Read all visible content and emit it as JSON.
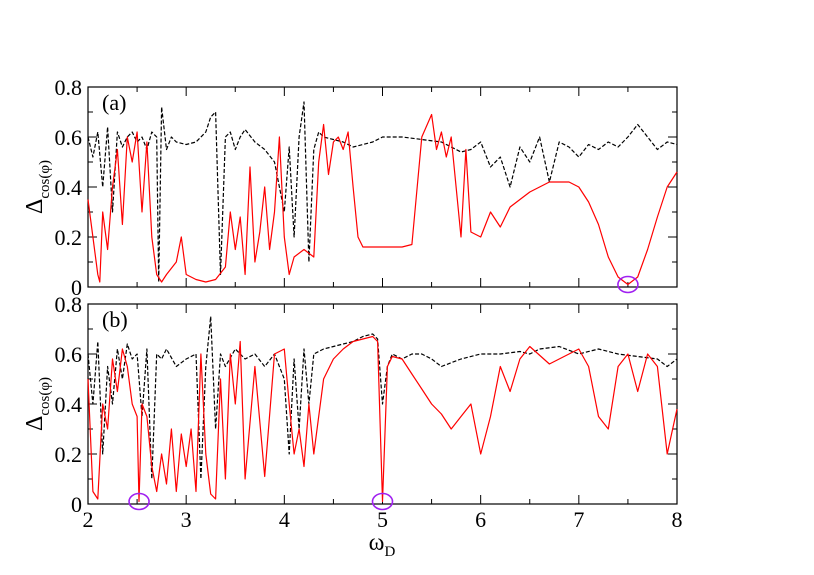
{
  "chart_data": {
    "type": "line",
    "x_axis": {
      "label_main": "ω",
      "label_sub": "D",
      "range": [
        2,
        8
      ],
      "ticks": [
        2,
        3,
        4,
        5,
        6,
        7,
        8
      ],
      "tick_labels": [
        "2",
        "3",
        "4",
        "5",
        "6",
        "7",
        "8"
      ]
    },
    "panels": [
      {
        "id": "a",
        "label": "(a)",
        "ylabel_main": "Δ",
        "ylabel_sub": "cos(φ)",
        "ylim": [
          0,
          0.8
        ],
        "yticks": [
          0,
          0.2,
          0.4,
          0.6,
          0.8
        ],
        "ytick_labels": [
          "0",
          "0.2",
          "0.4",
          "0.6",
          "0.8"
        ],
        "series": [
          {
            "name": "dashed",
            "color": "#000000",
            "style": "dashed",
            "x": [
              2.0,
              2.05,
              2.1,
              2.15,
              2.2,
              2.25,
              2.3,
              2.35,
              2.4,
              2.45,
              2.5,
              2.55,
              2.6,
              2.65,
              2.7,
              2.72,
              2.75,
              2.8,
              2.85,
              2.9,
              3.0,
              3.1,
              3.2,
              3.25,
              3.3,
              3.35,
              3.4,
              3.45,
              3.5,
              3.55,
              3.6,
              3.7,
              3.8,
              3.9,
              4.0,
              4.05,
              4.1,
              4.15,
              4.2,
              4.25,
              4.3,
              4.35,
              4.4,
              4.5,
              4.6,
              4.7,
              4.8,
              4.9,
              5.0,
              5.2,
              5.4,
              5.6,
              5.7,
              5.8,
              5.9,
              6.0,
              6.1,
              6.2,
              6.3,
              6.4,
              6.5,
              6.6,
              6.7,
              6.8,
              6.9,
              7.0,
              7.1,
              7.2,
              7.3,
              7.4,
              7.5,
              7.6,
              7.7,
              7.8,
              7.9,
              8.0
            ],
            "y": [
              0.6,
              0.52,
              0.62,
              0.4,
              0.64,
              0.3,
              0.62,
              0.56,
              0.6,
              0.62,
              0.58,
              0.6,
              0.55,
              0.62,
              0.6,
              0.02,
              0.72,
              0.55,
              0.6,
              0.58,
              0.57,
              0.58,
              0.62,
              0.68,
              0.7,
              0.05,
              0.6,
              0.62,
              0.55,
              0.6,
              0.63,
              0.58,
              0.55,
              0.5,
              0.3,
              0.56,
              0.2,
              0.6,
              0.74,
              0.1,
              0.55,
              0.62,
              0.6,
              0.59,
              0.58,
              0.56,
              0.57,
              0.58,
              0.6,
              0.6,
              0.59,
              0.58,
              0.56,
              0.54,
              0.55,
              0.58,
              0.48,
              0.52,
              0.4,
              0.56,
              0.5,
              0.6,
              0.42,
              0.58,
              0.56,
              0.52,
              0.57,
              0.55,
              0.58,
              0.56,
              0.6,
              0.65,
              0.6,
              0.55,
              0.58,
              0.57
            ]
          },
          {
            "name": "solid",
            "color": "#ff0000",
            "style": "solid",
            "x": [
              2.0,
              2.05,
              2.1,
              2.12,
              2.15,
              2.2,
              2.25,
              2.3,
              2.35,
              2.4,
              2.45,
              2.5,
              2.55,
              2.6,
              2.65,
              2.7,
              2.75,
              2.8,
              2.9,
              2.95,
              3.0,
              3.1,
              3.2,
              3.3,
              3.4,
              3.45,
              3.5,
              3.55,
              3.6,
              3.65,
              3.7,
              3.75,
              3.8,
              3.85,
              3.9,
              3.95,
              4.0,
              4.05,
              4.1,
              4.2,
              4.3,
              4.35,
              4.4,
              4.45,
              4.5,
              4.55,
              4.6,
              4.65,
              4.7,
              4.75,
              4.8,
              4.9,
              5.0,
              5.2,
              5.3,
              5.4,
              5.5,
              5.55,
              5.6,
              5.65,
              5.7,
              5.8,
              5.85,
              5.9,
              6.0,
              6.1,
              6.2,
              6.3,
              6.5,
              6.7,
              6.9,
              7.0,
              7.1,
              7.2,
              7.3,
              7.4,
              7.5,
              7.6,
              7.7,
              7.8,
              7.9,
              8.0
            ],
            "y": [
              0.35,
              0.2,
              0.05,
              0.02,
              0.3,
              0.15,
              0.4,
              0.55,
              0.25,
              0.6,
              0.5,
              0.62,
              0.3,
              0.58,
              0.2,
              0.05,
              0.02,
              0.05,
              0.1,
              0.2,
              0.05,
              0.03,
              0.02,
              0.03,
              0.08,
              0.3,
              0.15,
              0.28,
              0.05,
              0.48,
              0.1,
              0.22,
              0.4,
              0.15,
              0.3,
              0.6,
              0.2,
              0.05,
              0.12,
              0.15,
              0.12,
              0.5,
              0.65,
              0.45,
              0.58,
              0.6,
              0.55,
              0.62,
              0.4,
              0.2,
              0.16,
              0.16,
              0.16,
              0.16,
              0.17,
              0.6,
              0.69,
              0.55,
              0.62,
              0.52,
              0.6,
              0.2,
              0.55,
              0.22,
              0.2,
              0.3,
              0.24,
              0.32,
              0.38,
              0.42,
              0.42,
              0.4,
              0.34,
              0.25,
              0.12,
              0.04,
              0.01,
              0.04,
              0.15,
              0.28,
              0.4,
              0.46
            ]
          }
        ],
        "markers": [
          {
            "x": 7.5,
            "y": 0.01,
            "color": "#a020f0"
          }
        ]
      },
      {
        "id": "b",
        "label": "(b)",
        "ylabel_main": "Δ",
        "ylabel_sub": "cos(φ)",
        "ylim": [
          0,
          0.8
        ],
        "yticks": [
          0,
          0.2,
          0.4,
          0.6,
          0.8
        ],
        "ytick_labels": [
          "0",
          "0.2",
          "0.4",
          "0.6",
          "0.8"
        ],
        "series": [
          {
            "name": "dashed",
            "color": "#000000",
            "style": "dashed",
            "x": [
              2.0,
              2.05,
              2.1,
              2.15,
              2.2,
              2.25,
              2.3,
              2.35,
              2.4,
              2.45,
              2.5,
              2.55,
              2.6,
              2.65,
              2.7,
              2.75,
              2.8,
              2.9,
              3.0,
              3.1,
              3.15,
              3.2,
              3.25,
              3.3,
              3.35,
              3.4,
              3.5,
              3.6,
              3.7,
              3.8,
              3.9,
              4.0,
              4.05,
              4.1,
              4.15,
              4.2,
              4.25,
              4.3,
              4.4,
              4.5,
              4.6,
              4.7,
              4.8,
              4.9,
              4.95,
              5.0,
              5.05,
              5.1,
              5.2,
              5.3,
              5.4,
              5.5,
              5.6,
              5.8,
              6.0,
              6.2,
              6.4,
              6.5,
              6.6,
              6.8,
              7.0,
              7.2,
              7.4,
              7.6,
              7.8,
              7.9,
              8.0
            ],
            "y": [
              0.6,
              0.4,
              0.65,
              0.2,
              0.55,
              0.4,
              0.62,
              0.5,
              0.64,
              0.58,
              0.6,
              0.35,
              0.62,
              0.1,
              0.6,
              0.58,
              0.62,
              0.55,
              0.58,
              0.6,
              0.1,
              0.55,
              0.75,
              0.3,
              0.6,
              0.55,
              0.62,
              0.58,
              0.6,
              0.55,
              0.6,
              0.5,
              0.2,
              0.58,
              0.3,
              0.62,
              0.4,
              0.6,
              0.62,
              0.63,
              0.64,
              0.65,
              0.67,
              0.68,
              0.66,
              0.4,
              0.55,
              0.6,
              0.58,
              0.6,
              0.6,
              0.58,
              0.55,
              0.58,
              0.6,
              0.6,
              0.61,
              0.6,
              0.62,
              0.63,
              0.6,
              0.62,
              0.6,
              0.59,
              0.58,
              0.55,
              0.58
            ]
          },
          {
            "name": "solid",
            "color": "#ff0000",
            "style": "solid",
            "x": [
              2.0,
              2.05,
              2.1,
              2.15,
              2.2,
              2.25,
              2.3,
              2.35,
              2.4,
              2.45,
              2.5,
              2.52,
              2.55,
              2.6,
              2.65,
              2.7,
              2.75,
              2.8,
              2.85,
              2.9,
              2.95,
              3.0,
              3.05,
              3.1,
              3.15,
              3.2,
              3.25,
              3.3,
              3.35,
              3.4,
              3.45,
              3.5,
              3.55,
              3.6,
              3.7,
              3.8,
              3.9,
              4.0,
              4.05,
              4.1,
              4.15,
              4.2,
              4.25,
              4.3,
              4.4,
              4.5,
              4.6,
              4.7,
              4.8,
              4.9,
              4.95,
              5.0,
              5.05,
              5.1,
              5.2,
              5.3,
              5.4,
              5.5,
              5.6,
              5.7,
              5.8,
              5.9,
              6.0,
              6.1,
              6.2,
              6.3,
              6.4,
              6.5,
              6.7,
              6.9,
              7.0,
              7.1,
              7.2,
              7.3,
              7.4,
              7.5,
              7.6,
              7.7,
              7.8,
              7.9,
              8.0
            ],
            "y": [
              0.5,
              0.05,
              0.02,
              0.4,
              0.3,
              0.58,
              0.45,
              0.62,
              0.55,
              0.4,
              0.35,
              0.01,
              0.4,
              0.35,
              0.15,
              0.05,
              0.2,
              0.08,
              0.3,
              0.05,
              0.28,
              0.15,
              0.3,
              0.05,
              0.6,
              0.2,
              0.04,
              0.02,
              0.5,
              0.1,
              0.6,
              0.4,
              0.65,
              0.1,
              0.55,
              0.11,
              0.6,
              0.62,
              0.4,
              0.2,
              0.3,
              0.15,
              0.4,
              0.2,
              0.5,
              0.58,
              0.62,
              0.65,
              0.66,
              0.67,
              0.65,
              0.01,
              0.55,
              0.59,
              0.58,
              0.52,
              0.46,
              0.4,
              0.36,
              0.3,
              0.35,
              0.4,
              0.2,
              0.35,
              0.55,
              0.45,
              0.58,
              0.63,
              0.56,
              0.6,
              0.62,
              0.55,
              0.35,
              0.3,
              0.55,
              0.6,
              0.45,
              0.6,
              0.55,
              0.2,
              0.38
            ]
          }
        ],
        "markers": [
          {
            "x": 2.52,
            "y": 0.01,
            "color": "#a020f0"
          },
          {
            "x": 5.0,
            "y": 0.01,
            "color": "#a020f0"
          }
        ]
      }
    ]
  }
}
